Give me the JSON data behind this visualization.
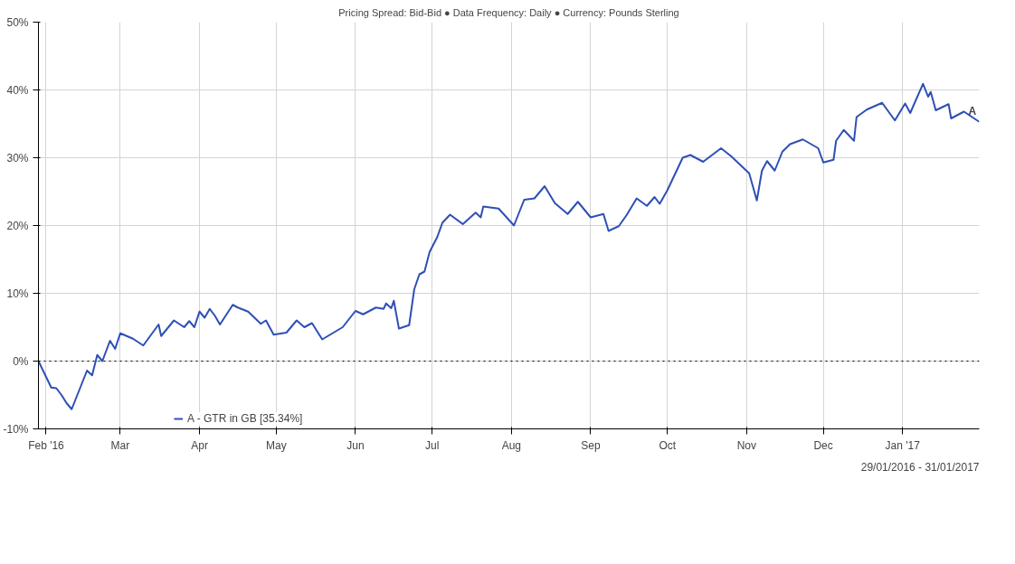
{
  "chart_data": {
    "type": "line",
    "title": "Pricing Spread: Bid-Bid ● Data Frequency: Daily ● Currency: Pounds Sterling",
    "x": [
      "2016-01-29",
      "2016-02-03",
      "2016-02-05",
      "2016-02-07",
      "2016-02-09",
      "2016-02-11",
      "2016-02-17",
      "2016-02-19",
      "2016-02-21",
      "2016-02-23",
      "2016-02-26",
      "2016-02-28",
      "2016-03-01",
      "2016-03-06",
      "2016-03-10",
      "2016-03-16",
      "2016-03-17",
      "2016-03-22",
      "2016-03-26",
      "2016-03-28",
      "2016-03-30",
      "2016-04-01",
      "2016-04-03",
      "2016-04-05",
      "2016-04-07",
      "2016-04-09",
      "2016-04-14",
      "2016-04-16",
      "2016-04-20",
      "2016-04-25",
      "2016-04-27",
      "2016-04-30",
      "2016-05-05",
      "2016-05-09",
      "2016-05-12",
      "2016-05-15",
      "2016-05-19",
      "2016-05-27",
      "2016-06-01",
      "2016-06-04",
      "2016-06-09",
      "2016-06-12",
      "2016-06-13",
      "2016-06-15",
      "2016-06-16",
      "2016-06-18",
      "2016-06-22",
      "2016-06-24",
      "2016-06-26",
      "2016-06-28",
      "2016-06-30",
      "2016-07-03",
      "2016-07-05",
      "2016-07-08",
      "2016-07-13",
      "2016-07-18",
      "2016-07-20",
      "2016-07-21",
      "2016-07-27",
      "2016-08-02",
      "2016-08-06",
      "2016-08-10",
      "2016-08-14",
      "2016-08-18",
      "2016-08-23",
      "2016-08-27",
      "2016-09-01",
      "2016-09-06",
      "2016-09-08",
      "2016-09-12",
      "2016-09-15",
      "2016-09-19",
      "2016-09-23",
      "2016-09-26",
      "2016-09-28",
      "2016-10-01",
      "2016-10-07",
      "2016-10-10",
      "2016-10-15",
      "2016-10-22",
      "2016-10-26",
      "2016-11-02",
      "2016-11-05",
      "2016-11-07",
      "2016-11-09",
      "2016-11-12",
      "2016-11-15",
      "2016-11-18",
      "2016-11-23",
      "2016-11-29",
      "2016-12-01",
      "2016-12-05",
      "2016-12-06",
      "2016-12-09",
      "2016-12-13",
      "2016-12-14",
      "2016-12-18",
      "2016-12-24",
      "2016-12-29",
      "2017-01-02",
      "2017-01-04",
      "2017-01-09",
      "2017-01-11",
      "2017-01-12",
      "2017-01-14",
      "2017-01-19",
      "2017-01-20",
      "2017-01-25",
      "2017-01-31"
    ],
    "series": [
      {
        "name": "A - GTR in GB [35.34%]",
        "color": "#2e4fb5",
        "values": [
          0,
          -3.9,
          -4.0,
          -5.0,
          -6.2,
          -7.1,
          -1.4,
          -2.1,
          0.9,
          0,
          3.0,
          1.8,
          4.1,
          3.3,
          2.3,
          5.4,
          3.7,
          6.0,
          5.0,
          5.9,
          5.0,
          7.3,
          6.4,
          7.7,
          6.7,
          5.4,
          8.3,
          7.9,
          7.3,
          5.5,
          6.0,
          3.9,
          4.2,
          6.0,
          5.0,
          5.6,
          3.2,
          5.0,
          7.4,
          6.9,
          7.9,
          7.7,
          8.5,
          7.8,
          8.9,
          4.8,
          5.3,
          10.6,
          12.8,
          13.2,
          16.1,
          18.3,
          20.4,
          21.6,
          20.2,
          21.9,
          21.2,
          22.8,
          22.5,
          20.0,
          23.8,
          24.0,
          25.8,
          23.3,
          21.7,
          23.5,
          21.2,
          21.7,
          19.2,
          19.9,
          21.5,
          24.0,
          22.9,
          24.2,
          23.2,
          25.2,
          30.0,
          30.4,
          29.4,
          31.4,
          30.2,
          27.7,
          23.7,
          28.1,
          29.5,
          28.1,
          30.9,
          32.0,
          32.7,
          31.4,
          29.3,
          29.7,
          32.5,
          34.1,
          32.5,
          36.0,
          37.1,
          38.1,
          35.5,
          38.0,
          36.6,
          40.9,
          39.0,
          39.7,
          37.0,
          37.9,
          35.8,
          36.8,
          35.3
        ]
      }
    ],
    "xlim": [
      "2016-01-29",
      "2017-01-31"
    ],
    "xticks": [
      {
        "value": "2016-02-01",
        "label": "Feb '16"
      },
      {
        "value": "2016-03-01",
        "label": "Mar"
      },
      {
        "value": "2016-04-01",
        "label": "Apr"
      },
      {
        "value": "2016-05-01",
        "label": "May"
      },
      {
        "value": "2016-06-01",
        "label": "Jun"
      },
      {
        "value": "2016-07-01",
        "label": "Jul"
      },
      {
        "value": "2016-08-01",
        "label": "Aug"
      },
      {
        "value": "2016-09-01",
        "label": "Sep"
      },
      {
        "value": "2016-10-01",
        "label": "Oct"
      },
      {
        "value": "2016-11-01",
        "label": "Nov"
      },
      {
        "value": "2016-12-01",
        "label": "Dec"
      },
      {
        "value": "2017-01-01",
        "label": "Jan '17"
      }
    ],
    "ylim": [
      -10,
      50
    ],
    "yticks": [
      {
        "value": -10,
        "label": "-10%"
      },
      {
        "value": 0,
        "label": "0%"
      },
      {
        "value": 10,
        "label": "10%"
      },
      {
        "value": 20,
        "label": "20%"
      },
      {
        "value": 30,
        "label": "30%"
      },
      {
        "value": 40,
        "label": "40%"
      },
      {
        "value": 50,
        "label": "50%"
      }
    ],
    "ref_lines": [
      {
        "axis": "y",
        "value": 0,
        "color": "#000000",
        "line_style": "dotted"
      }
    ],
    "annotations": [
      {
        "text": "A",
        "x": "2017-01-31",
        "y": 35.3
      },
      "29/01/2016 - 31/01/2017"
    ],
    "grid": true,
    "legend": "bottom left",
    "marker": "none",
    "line_style": "solid"
  }
}
